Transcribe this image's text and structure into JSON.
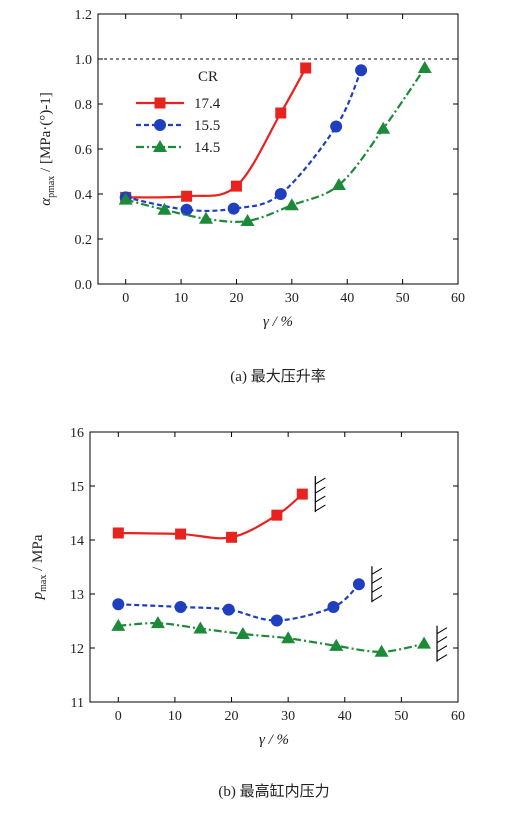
{
  "chart_data": [
    {
      "type": "line",
      "caption": "(a) 最大压升率",
      "xlabel": "γ / %",
      "ylabel": "α pmax / [MPa·(°)-1]",
      "xlim": [
        -5,
        60
      ],
      "ylim": [
        0.0,
        1.2
      ],
      "xticks": [
        "0",
        "10",
        "20",
        "30",
        "40",
        "50",
        "60"
      ],
      "yticks": [
        "0.0",
        "0.2",
        "0.4",
        "0.6",
        "0.8",
        "1.0",
        "1.2"
      ],
      "reference_line_y": 1.0,
      "legend_title": "CR",
      "legend_position": "upper-left",
      "series": [
        {
          "name": "17.4",
          "color": "#e8231f",
          "marker": "square",
          "linestyle": "solid",
          "x": [
            0,
            11,
            20,
            28,
            32.5
          ],
          "y": [
            0.385,
            0.39,
            0.435,
            0.76,
            0.96
          ]
        },
        {
          "name": "15.5",
          "color": "#1f3fbf",
          "marker": "circle",
          "linestyle": "dashed",
          "x": [
            0,
            11,
            19.5,
            28,
            38,
            42.5
          ],
          "y": [
            0.385,
            0.33,
            0.335,
            0.4,
            0.7,
            0.95
          ]
        },
        {
          "name": "14.5",
          "color": "#1d8a3a",
          "marker": "triangle",
          "linestyle": "dashdot",
          "x": [
            0,
            7,
            14.5,
            22,
            30,
            38.5,
            46.5,
            54
          ],
          "y": [
            0.375,
            0.33,
            0.29,
            0.28,
            0.35,
            0.44,
            0.69,
            0.96
          ]
        }
      ]
    },
    {
      "type": "line",
      "caption": "(b) 最高缸内压力",
      "xlabel": "γ / %",
      "ylabel": "p max / MPa",
      "xlim": [
        -5,
        60
      ],
      "ylim": [
        11,
        16
      ],
      "xticks": [
        "0",
        "10",
        "20",
        "30",
        "40",
        "50",
        "60"
      ],
      "yticks": [
        "11",
        "12",
        "13",
        "14",
        "15",
        "16"
      ],
      "series": [
        {
          "name": "17.4",
          "color": "#e8231f",
          "marker": "square",
          "linestyle": "solid",
          "x": [
            0,
            11,
            20,
            28,
            32.5
          ],
          "y": [
            14.13,
            14.11,
            14.05,
            14.46,
            14.85
          ]
        },
        {
          "name": "15.5",
          "color": "#1f3fbf",
          "marker": "circle",
          "linestyle": "dashed",
          "x": [
            0,
            11,
            19.5,
            28,
            38,
            42.5
          ],
          "y": [
            12.81,
            12.76,
            12.71,
            12.51,
            12.76,
            13.18
          ]
        },
        {
          "name": "14.5",
          "color": "#1d8a3a",
          "marker": "triangle",
          "linestyle": "dashdot",
          "x": [
            0,
            7,
            14.5,
            22,
            30,
            38.5,
            46.5,
            54
          ],
          "y": [
            12.41,
            12.46,
            12.36,
            12.26,
            12.18,
            12.04,
            11.93,
            12.08
          ]
        }
      ]
    }
  ]
}
